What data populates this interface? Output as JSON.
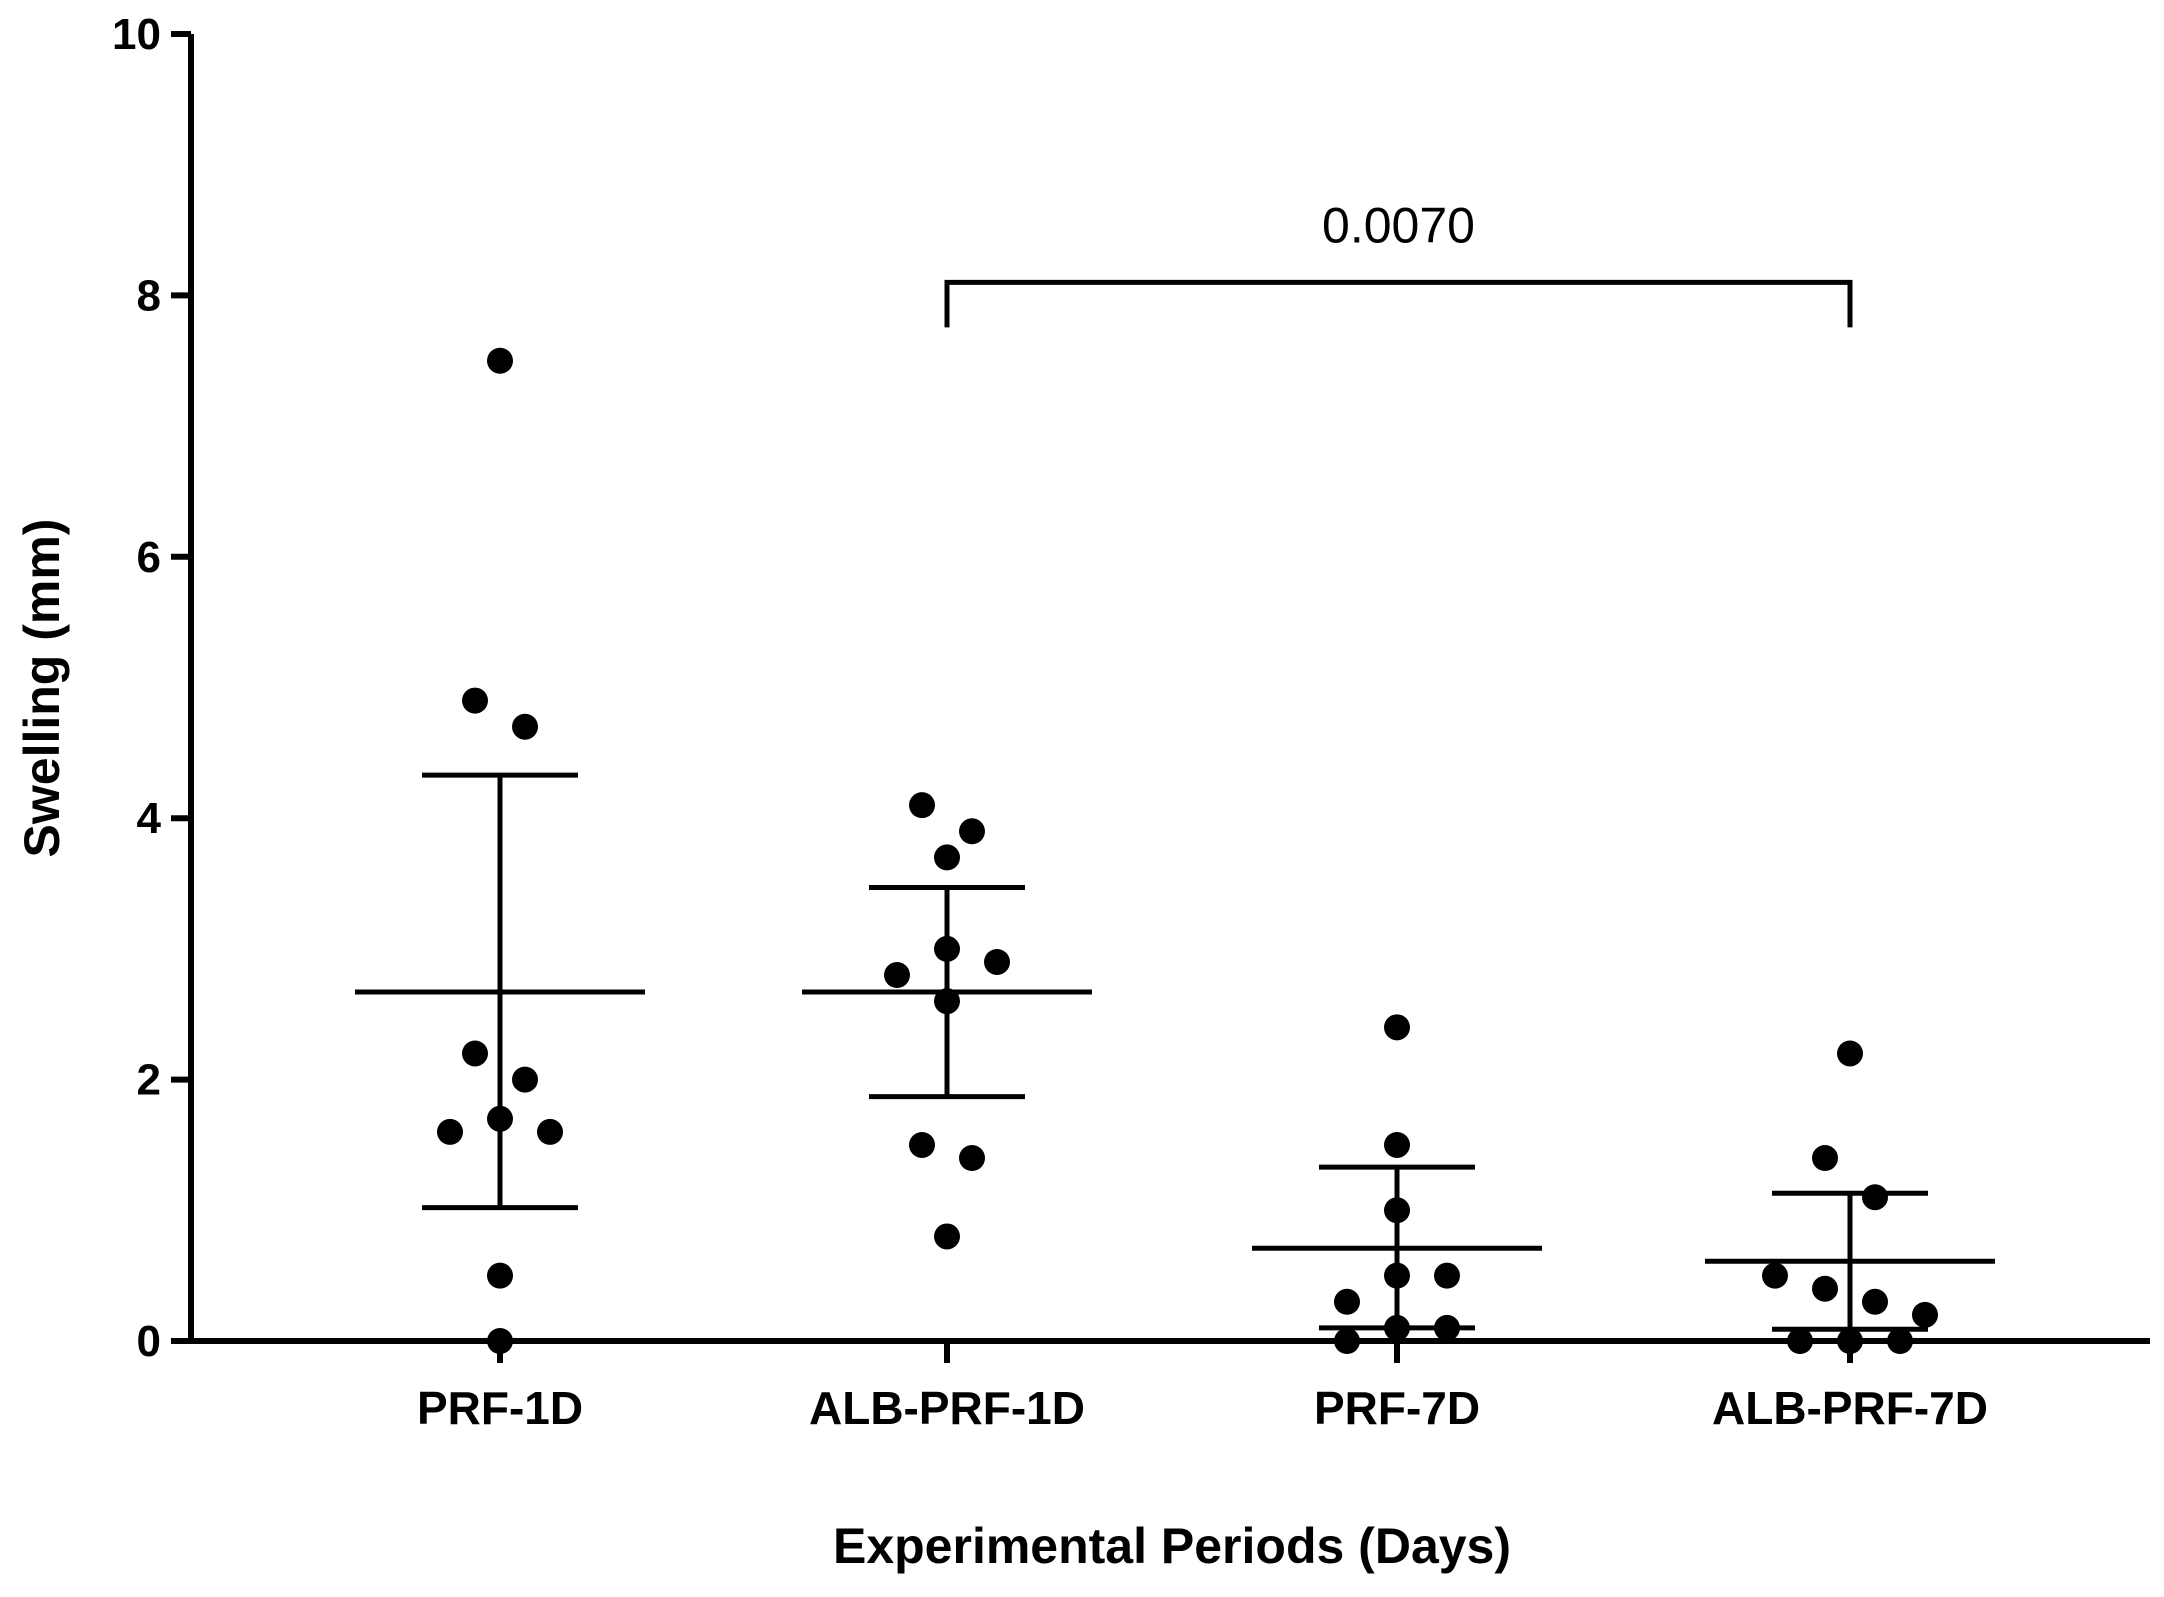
{
  "chart_data": {
    "type": "scatter",
    "title": "",
    "xlabel": "Experimental Periods (Days)",
    "ylabel": "Swelling (mm)",
    "ylim": [
      0,
      10
    ],
    "yticks": [
      {
        "value": 0,
        "label": "0"
      },
      {
        "value": 2,
        "label": "2"
      },
      {
        "value": 4,
        "label": "4"
      },
      {
        "value": 6,
        "label": "6"
      },
      {
        "value": 8,
        "label": "8"
      },
      {
        "value": 10,
        "label": "10"
      }
    ],
    "categories": [
      "PRF-1D",
      "ALB-PRF-1D",
      "PRF-7D",
      "ALB-PRF-7D"
    ],
    "groups": [
      {
        "name": "PRF-1D",
        "points": [
          7.5,
          4.9,
          4.7,
          2.2,
          2.0,
          1.7,
          1.6,
          1.6,
          0.5,
          0.0
        ],
        "mean": 2.67,
        "error_low": 1.02,
        "error_high": 4.33
      },
      {
        "name": "ALB-PRF-1D",
        "points": [
          4.1,
          3.9,
          3.7,
          3.0,
          2.9,
          2.8,
          2.6,
          1.5,
          1.4,
          0.8
        ],
        "mean": 2.67,
        "error_low": 1.87,
        "error_high": 3.47
      },
      {
        "name": "PRF-7D",
        "points": [
          2.4,
          1.5,
          1.0,
          0.5,
          0.5,
          0.3,
          0.1,
          0.1,
          0.0
        ],
        "mean": 0.71,
        "error_low": 0.1,
        "error_high": 1.33
      },
      {
        "name": "ALB-PRF-7D",
        "points": [
          2.2,
          1.4,
          1.1,
          0.5,
          0.4,
          0.3,
          0.2,
          0.0,
          0.0,
          0.0
        ],
        "mean": 0.61,
        "error_low": 0.09,
        "error_high": 1.13
      }
    ],
    "annotations": [
      {
        "text": "0.0070",
        "from": "ALB-PRF-1D",
        "to": "ALB-PRF-7D",
        "y": 8.1
      }
    ]
  }
}
